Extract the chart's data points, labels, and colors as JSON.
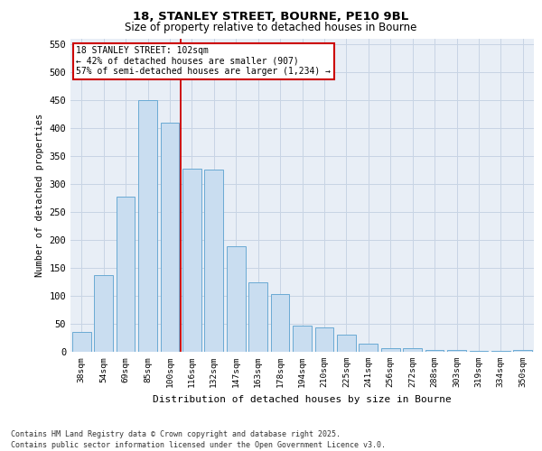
{
  "title1": "18, STANLEY STREET, BOURNE, PE10 9BL",
  "title2": "Size of property relative to detached houses in Bourne",
  "xlabel": "Distribution of detached houses by size in Bourne",
  "ylabel": "Number of detached properties",
  "categories": [
    "38sqm",
    "54sqm",
    "69sqm",
    "85sqm",
    "100sqm",
    "116sqm",
    "132sqm",
    "147sqm",
    "163sqm",
    "178sqm",
    "194sqm",
    "210sqm",
    "225sqm",
    "241sqm",
    "256sqm",
    "272sqm",
    "288sqm",
    "303sqm",
    "319sqm",
    "334sqm",
    "350sqm"
  ],
  "values": [
    35,
    137,
    277,
    450,
    410,
    327,
    325,
    188,
    124,
    103,
    46,
    43,
    30,
    14,
    7,
    7,
    3,
    4,
    1,
    2,
    4
  ],
  "bar_color": "#c9ddf0",
  "bar_edge_color": "#6aaad4",
  "grid_color": "#c8d4e4",
  "background_color": "#e8eef6",
  "vline_x": 4.5,
  "vline_color": "#cc0000",
  "annotation_line0": "18 STANLEY STREET: 102sqm",
  "annotation_line1": "← 42% of detached houses are smaller (907)",
  "annotation_line2": "57% of semi-detached houses are larger (1,234) →",
  "annotation_box_facecolor": "#ffffff",
  "annotation_border_color": "#cc0000",
  "ylim": [
    0,
    560
  ],
  "yticks": [
    0,
    50,
    100,
    150,
    200,
    250,
    300,
    350,
    400,
    450,
    500,
    550
  ],
  "footer1": "Contains HM Land Registry data © Crown copyright and database right 2025.",
  "footer2": "Contains public sector information licensed under the Open Government Licence v3.0."
}
